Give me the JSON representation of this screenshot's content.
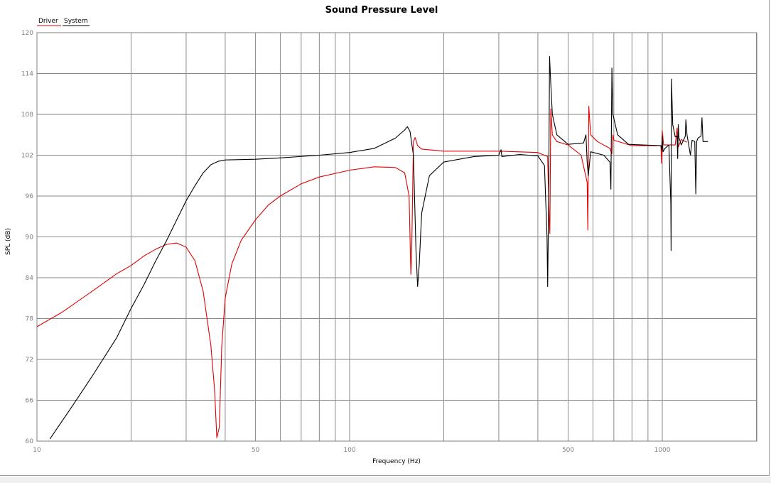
{
  "chart_data": {
    "type": "line",
    "title": "Sound Pressure Level",
    "xlabel": "Frequency (Hz)",
    "ylabel": "SPL (dB)",
    "xscale": "log",
    "xlim": [
      10,
      1200
    ],
    "ylim": [
      60,
      120
    ],
    "x_ticks": [
      10,
      50,
      100,
      500,
      1000
    ],
    "y_ticks": [
      60,
      66,
      72,
      78,
      84,
      90,
      96,
      102,
      108,
      114,
      120
    ],
    "grid": true,
    "legend_position": "top-left",
    "series": [
      {
        "name": "Driver",
        "color": "#e00000",
        "points": [
          [
            10,
            76.8
          ],
          [
            12,
            78.9
          ],
          [
            15,
            82.0
          ],
          [
            18,
            84.6
          ],
          [
            20,
            85.8
          ],
          [
            22,
            87.2
          ],
          [
            24,
            88.2
          ],
          [
            26,
            88.9
          ],
          [
            28,
            89.1
          ],
          [
            30,
            88.5
          ],
          [
            32,
            86.5
          ],
          [
            34,
            82.0
          ],
          [
            36,
            74.0
          ],
          [
            37,
            67.5
          ],
          [
            37.6,
            60.5
          ],
          [
            38.3,
            62.0
          ],
          [
            39,
            74.0
          ],
          [
            40,
            81.0
          ],
          [
            42,
            86.0
          ],
          [
            45,
            89.5
          ],
          [
            50,
            92.5
          ],
          [
            55,
            94.7
          ],
          [
            60,
            96.0
          ],
          [
            70,
            97.8
          ],
          [
            80,
            98.8
          ],
          [
            100,
            99.8
          ],
          [
            120,
            100.3
          ],
          [
            140,
            100.2
          ],
          [
            150,
            99.4
          ],
          [
            155,
            96.0
          ],
          [
            157,
            84.5
          ],
          [
            158,
            88.0
          ],
          [
            160,
            104.0
          ],
          [
            162,
            104.6
          ],
          [
            165,
            103.4
          ],
          [
            170,
            102.9
          ],
          [
            200,
            102.6
          ],
          [
            300,
            102.6
          ],
          [
            400,
            102.4
          ],
          [
            430,
            101.8
          ],
          [
            435,
            92.5
          ],
          [
            437,
            90.5
          ],
          [
            440,
            108.8
          ],
          [
            445,
            105.0
          ],
          [
            460,
            104.0
          ],
          [
            500,
            103.5
          ],
          [
            550,
            102.0
          ],
          [
            575,
            98.0
          ],
          [
            578,
            91.0
          ],
          [
            582,
            109.2
          ],
          [
            590,
            105.0
          ],
          [
            620,
            104.0
          ],
          [
            680,
            103.0
          ],
          [
            690,
            102.2
          ],
          [
            695,
            105.0
          ],
          [
            700,
            104.2
          ],
          [
            800,
            103.4
          ],
          [
            990,
            103.4
          ],
          [
            995,
            100.8
          ],
          [
            1000,
            105.6
          ],
          [
            1010,
            103.5
          ],
          [
            1100,
            103.5
          ],
          [
            1115,
            106.0
          ],
          [
            1125,
            103.2
          ],
          [
            1150,
            104.3
          ],
          [
            1200,
            103.9
          ]
        ]
      },
      {
        "name": "System",
        "color": "#000000",
        "points": [
          [
            11,
            60.3
          ],
          [
            13,
            65.2
          ],
          [
            15,
            69.5
          ],
          [
            18,
            75.2
          ],
          [
            20,
            79.5
          ],
          [
            22,
            83.0
          ],
          [
            24,
            86.5
          ],
          [
            26,
            89.5
          ],
          [
            28,
            92.5
          ],
          [
            30,
            95.3
          ],
          [
            32,
            97.5
          ],
          [
            34,
            99.4
          ],
          [
            36,
            100.6
          ],
          [
            38,
            101.1
          ],
          [
            40,
            101.3
          ],
          [
            50,
            101.4
          ],
          [
            60,
            101.6
          ],
          [
            80,
            102.0
          ],
          [
            100,
            102.4
          ],
          [
            120,
            103.0
          ],
          [
            140,
            104.5
          ],
          [
            150,
            105.7
          ],
          [
            153,
            106.2
          ],
          [
            156,
            105.5
          ],
          [
            160,
            102.0
          ],
          [
            163,
            88.0
          ],
          [
            165,
            82.7
          ],
          [
            167,
            86.0
          ],
          [
            170,
            93.5
          ],
          [
            180,
            99.0
          ],
          [
            200,
            101.0
          ],
          [
            250,
            101.8
          ],
          [
            300,
            102.0
          ],
          [
            305,
            102.8
          ],
          [
            307,
            101.8
          ],
          [
            350,
            102.1
          ],
          [
            400,
            101.9
          ],
          [
            420,
            100.5
          ],
          [
            428,
            90.0
          ],
          [
            430,
            82.7
          ],
          [
            433,
            95.0
          ],
          [
            436,
            116.5
          ],
          [
            440,
            112.5
          ],
          [
            445,
            108.0
          ],
          [
            460,
            105.0
          ],
          [
            500,
            103.6
          ],
          [
            560,
            103.8
          ],
          [
            570,
            105.0
          ],
          [
            575,
            101.0
          ],
          [
            580,
            99.0
          ],
          [
            590,
            102.5
          ],
          [
            650,
            102.0
          ],
          [
            680,
            101.0
          ],
          [
            685,
            97.0
          ],
          [
            690,
            114.8
          ],
          [
            695,
            108.0
          ],
          [
            720,
            105.0
          ],
          [
            780,
            103.6
          ],
          [
            990,
            103.4
          ],
          [
            995,
            102.8
          ],
          [
            1000,
            104.8
          ],
          [
            1005,
            102.5
          ],
          [
            1020,
            103.0
          ],
          [
            1050,
            103.5
          ],
          [
            1065,
            95.0
          ],
          [
            1067,
            88.0
          ],
          [
            1070,
            113.2
          ],
          [
            1080,
            106.5
          ],
          [
            1100,
            104.7
          ],
          [
            1115,
            104.8
          ],
          [
            1120,
            101.5
          ],
          [
            1125,
            106.5
          ],
          [
            1130,
            104.6
          ],
          [
            1150,
            103.5
          ],
          [
            1185,
            104.8
          ],
          [
            1190,
            107.2
          ],
          [
            1200,
            105.0
          ],
          [
            1230,
            102.0
          ],
          [
            1245,
            104.2
          ],
          [
            1270,
            104.0
          ],
          [
            1280,
            96.3
          ],
          [
            1288,
            104.0
          ],
          [
            1300,
            104.5
          ],
          [
            1330,
            104.8
          ],
          [
            1340,
            107.5
          ],
          [
            1350,
            104.0
          ],
          [
            1400,
            104.0
          ]
        ]
      }
    ]
  }
}
